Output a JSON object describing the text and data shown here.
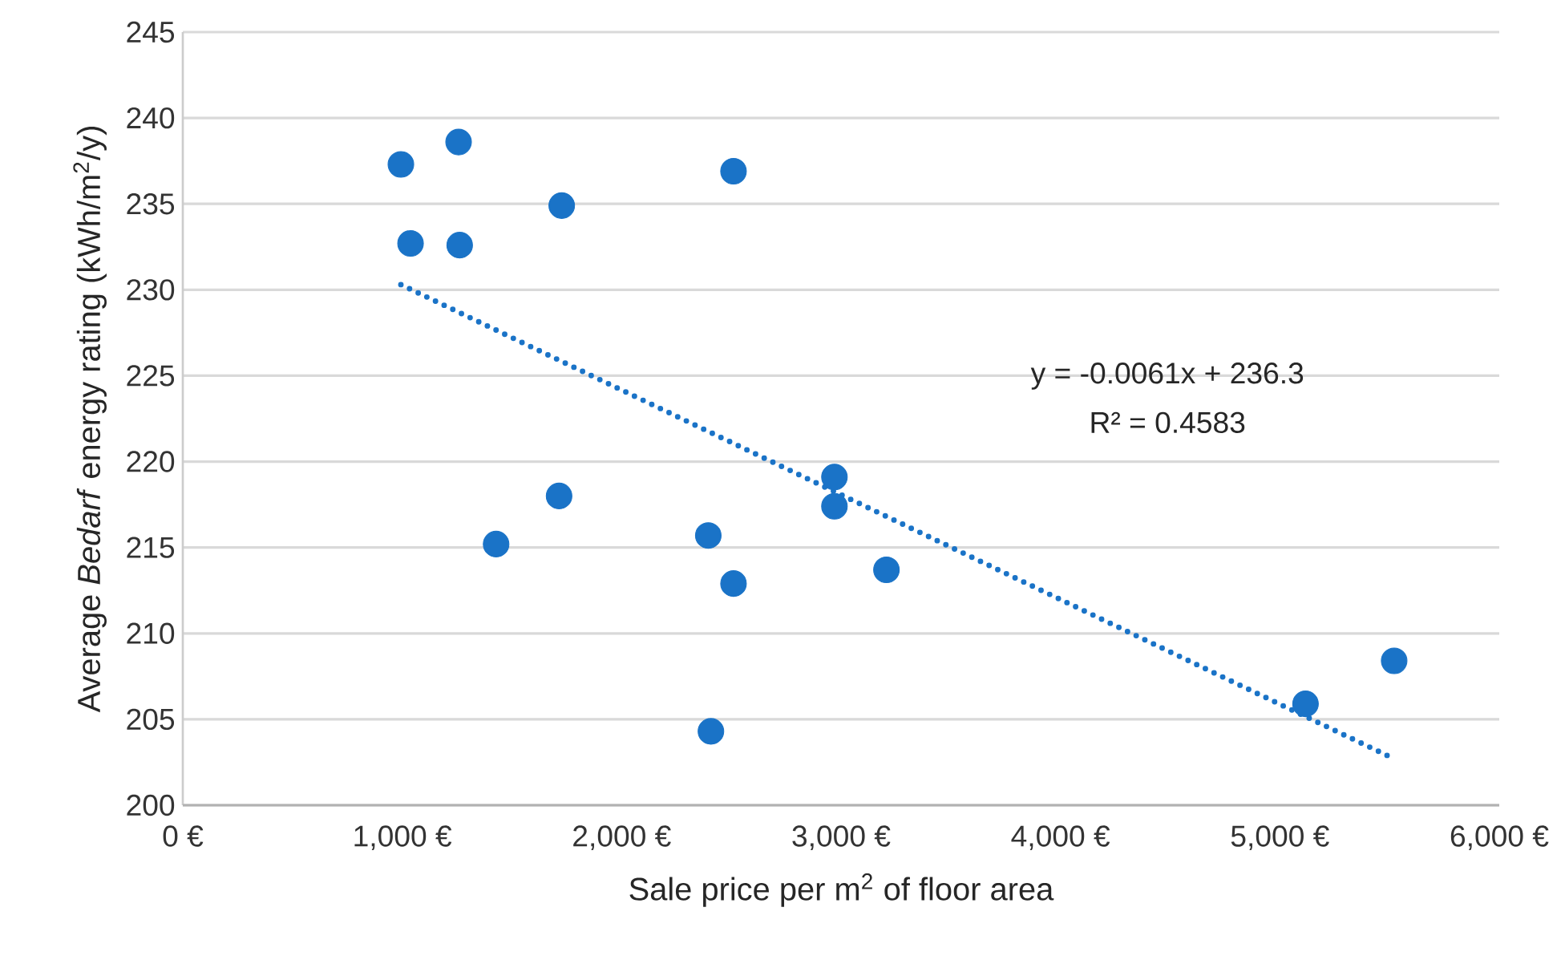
{
  "chart_data": {
    "type": "scatter",
    "xlabel": "Sale price per m$^{2}$ of floor area",
    "ylabel": "Average *Bedarf* energy rating (kWh/m$^{2}$/y)",
    "xlim": [
      0,
      6000
    ],
    "ylim": [
      200,
      245
    ],
    "xticks": [
      {
        "value": 0,
        "label": "0 €"
      },
      {
        "value": 1000,
        "label": "1,000 €"
      },
      {
        "value": 2000,
        "label": "2,000 €"
      },
      {
        "value": 3000,
        "label": "3,000 €"
      },
      {
        "value": 4000,
        "label": "4,000 €"
      },
      {
        "value": 5000,
        "label": "5,000 €"
      },
      {
        "value": 6000,
        "label": "6,000 €"
      }
    ],
    "yticks": [
      200,
      205,
      210,
      215,
      220,
      225,
      230,
      235,
      240,
      245
    ],
    "grid": "y",
    "series": [
      {
        "color": "#1a73c7",
        "marker": "circle",
        "x": [
          994,
          1257,
          1038,
          1262,
          1727,
          2510,
          1715,
          1428,
          2395,
          2407,
          2510,
          2970,
          2970,
          3207,
          5117,
          5521
        ],
        "values": [
          237.3,
          238.6,
          232.7,
          232.6,
          234.9,
          236.9,
          218.0,
          215.2,
          215.7,
          204.3,
          212.9,
          219.1,
          217.4,
          213.7,
          205.9,
          208.4
        ]
      },
      {
        "type": "line",
        "color": "#1a73c7",
        "line_style": "dotted",
        "x": [
          994,
          5521
        ],
        "values": [
          230.3,
          202.7
        ]
      }
    ],
    "annotations": [
      "y = -0.0061x + 236.3",
      "R² = 0.4583"
    ]
  }
}
